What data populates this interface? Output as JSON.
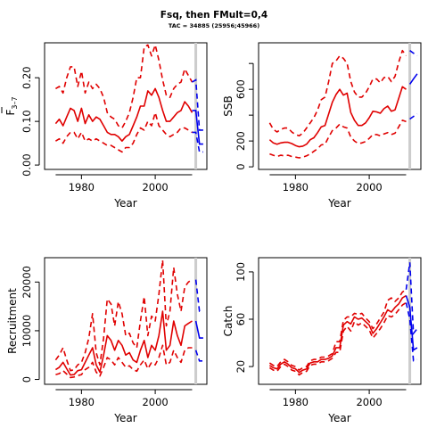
{
  "figure": {
    "title": "Fsq, then FMult=0,4",
    "subtitle": "TAC = 34885 (25956;45966)"
  },
  "colors": {
    "history": "#e00000",
    "projection": "#0000ee",
    "divider": "#cccccc"
  },
  "chart_data": [
    {
      "type": "line",
      "id": "fbar",
      "xlabel": "Year",
      "ylabel_main": "F",
      "ylabel_sub": "3–7",
      "xlim": [
        1970,
        2014
      ],
      "ylim": [
        -0.01,
        0.28
      ],
      "xticks": [
        1980,
        2000
      ],
      "yticks": [
        0.0,
        0.1,
        0.2
      ],
      "ytick_labels": [
        "0.00",
        "0.10",
        "0.20"
      ],
      "divider_x": 2011,
      "x": [
        1973,
        1974,
        1975,
        1976,
        1977,
        1978,
        1979,
        1980,
        1981,
        1982,
        1983,
        1984,
        1985,
        1986,
        1987,
        1988,
        1989,
        1990,
        1991,
        1992,
        1993,
        1994,
        1995,
        1996,
        1997,
        1998,
        1999,
        2000,
        2001,
        2002,
        2003,
        2004,
        2005,
        2006,
        2007,
        2008,
        2009,
        2010
      ],
      "series": [
        {
          "role": "median",
          "values": [
            0.095,
            0.105,
            0.09,
            0.11,
            0.13,
            0.125,
            0.1,
            0.13,
            0.095,
            0.115,
            0.1,
            0.11,
            0.105,
            0.09,
            0.075,
            0.07,
            0.07,
            0.065,
            0.055,
            0.065,
            0.07,
            0.09,
            0.11,
            0.135,
            0.135,
            0.17,
            0.16,
            0.175,
            0.155,
            0.125,
            0.1,
            0.1,
            0.11,
            0.12,
            0.125,
            0.145,
            0.135,
            0.12
          ]
        },
        {
          "role": "upper",
          "values": [
            0.175,
            0.18,
            0.165,
            0.2,
            0.225,
            0.225,
            0.18,
            0.215,
            0.165,
            0.19,
            0.175,
            0.185,
            0.175,
            0.155,
            0.12,
            0.11,
            0.105,
            0.09,
            0.085,
            0.1,
            0.12,
            0.155,
            0.2,
            0.2,
            0.27,
            0.275,
            0.25,
            0.275,
            0.24,
            0.195,
            0.16,
            0.155,
            0.175,
            0.185,
            0.19,
            0.22,
            0.205,
            0.19
          ]
        },
        {
          "role": "lower",
          "values": [
            0.055,
            0.06,
            0.05,
            0.065,
            0.075,
            0.075,
            0.06,
            0.075,
            0.055,
            0.06,
            0.055,
            0.06,
            0.055,
            0.05,
            0.045,
            0.045,
            0.04,
            0.035,
            0.03,
            0.04,
            0.04,
            0.05,
            0.07,
            0.085,
            0.08,
            0.1,
            0.09,
            0.12,
            0.09,
            0.08,
            0.07,
            0.065,
            0.07,
            0.075,
            0.085,
            0.085,
            0.08,
            0.075
          ]
        }
      ],
      "projection": {
        "x": [
          2010,
          2011,
          2012,
          2013
        ],
        "median": [
          0.125,
          0.125,
          0.048,
          0.048
        ],
        "upper": [
          0.19,
          0.195,
          0.08,
          0.08
        ],
        "lower": [
          0.075,
          0.075,
          0.03,
          0.03
        ]
      }
    },
    {
      "type": "line",
      "id": "ssb",
      "xlabel": "Year",
      "ylabel_main": "SSB",
      "xlim": [
        1970,
        2014
      ],
      "ylim": [
        -20,
        960
      ],
      "xticks": [
        1980,
        2000
      ],
      "yticks": [
        0,
        200,
        400,
        600,
        800
      ],
      "ytick_labels": [
        "0",
        "200",
        "",
        "600",
        ""
      ],
      "divider_x": 2011,
      "x": [
        1973,
        1974,
        1975,
        1976,
        1977,
        1978,
        1979,
        1980,
        1981,
        1982,
        1983,
        1984,
        1985,
        1986,
        1987,
        1988,
        1989,
        1990,
        1991,
        1992,
        1993,
        1994,
        1995,
        1996,
        1997,
        1998,
        1999,
        2000,
        2001,
        2002,
        2003,
        2004,
        2005,
        2006,
        2007,
        2008,
        2009,
        2010
      ],
      "series": [
        {
          "role": "median",
          "values": [
            210,
            185,
            175,
            185,
            190,
            190,
            180,
            165,
            155,
            160,
            175,
            210,
            225,
            265,
            310,
            320,
            410,
            500,
            560,
            600,
            555,
            570,
            420,
            360,
            320,
            320,
            340,
            380,
            430,
            425,
            415,
            450,
            470,
            430,
            440,
            530,
            620,
            600
          ]
        },
        {
          "role": "upper",
          "values": [
            340,
            290,
            270,
            290,
            300,
            300,
            270,
            250,
            240,
            260,
            300,
            340,
            380,
            440,
            520,
            540,
            660,
            800,
            820,
            860,
            840,
            800,
            660,
            580,
            540,
            540,
            570,
            620,
            680,
            680,
            650,
            690,
            700,
            660,
            700,
            810,
            900,
            860
          ]
        },
        {
          "role": "lower",
          "values": [
            100,
            90,
            80,
            90,
            85,
            90,
            80,
            75,
            70,
            75,
            85,
            100,
            120,
            140,
            170,
            175,
            230,
            280,
            300,
            330,
            310,
            300,
            230,
            200,
            180,
            185,
            195,
            220,
            250,
            250,
            240,
            255,
            265,
            250,
            260,
            310,
            360,
            350
          ]
        }
      ],
      "projection": {
        "x": [
          2011,
          2012,
          2013
        ],
        "median": [
          640,
          680,
          720
        ],
        "upper": [
          900,
          880,
          860
        ],
        "lower": [
          370,
          390,
          410
        ]
      }
    },
    {
      "type": "line",
      "id": "recruitment",
      "xlabel": "Year",
      "ylabel_main": "Recruitment",
      "xlim": [
        1970,
        2014
      ],
      "ylim": [
        -1000,
        25000
      ],
      "xticks": [
        1980,
        2000
      ],
      "yticks": [
        0,
        10000,
        20000
      ],
      "ytick_labels": [
        "0",
        "10000",
        "20000"
      ],
      "divider_x": 2011,
      "x": [
        1973,
        1974,
        1975,
        1976,
        1977,
        1978,
        1979,
        1980,
        1981,
        1982,
        1983,
        1984,
        1985,
        1986,
        1987,
        1988,
        1989,
        1990,
        1991,
        1992,
        1993,
        1994,
        1995,
        1996,
        1997,
        1998,
        1999,
        2000,
        2001,
        2002,
        2003,
        2004,
        2005,
        2006,
        2007,
        2008,
        2009,
        2010
      ],
      "series": [
        {
          "role": "median",
          "values": [
            2000,
            2500,
            3500,
            2200,
            900,
            1000,
            1800,
            2000,
            3500,
            5000,
            6500,
            3000,
            1500,
            5000,
            9000,
            8000,
            6000,
            8000,
            7000,
            5000,
            5500,
            4000,
            3500,
            6000,
            8000,
            4500,
            7000,
            6000,
            9000,
            14000,
            6000,
            7000,
            12000,
            9000,
            7000,
            11000,
            11500,
            12000
          ]
        },
        {
          "role": "upper",
          "values": [
            4000,
            5000,
            6500,
            4000,
            1800,
            2000,
            3000,
            3500,
            5500,
            8500,
            13500,
            5500,
            3000,
            8500,
            16500,
            15500,
            11000,
            16000,
            13500,
            9000,
            9500,
            7500,
            6500,
            12000,
            17000,
            9000,
            13000,
            12000,
            17500,
            24500,
            11000,
            14000,
            23000,
            17500,
            14000,
            19000,
            20000,
            20500
          ]
        },
        {
          "role": "lower",
          "values": [
            1000,
            1200,
            1800,
            1100,
            400,
            500,
            800,
            1000,
            2000,
            2500,
            3500,
            1500,
            700,
            2500,
            4500,
            4000,
            3000,
            4500,
            3500,
            2500,
            2800,
            2000,
            1700,
            3000,
            4000,
            2200,
            3500,
            3000,
            4500,
            7000,
            3000,
            3500,
            6000,
            4500,
            3500,
            6000,
            6500,
            6500
          ]
        }
      ],
      "projection": {
        "x": [
          2011,
          2012,
          2013
        ],
        "median": [
          12000,
          8500,
          8500
        ],
        "upper": [
          20500,
          14000,
          14000
        ],
        "lower": [
          6000,
          3800,
          3800
        ]
      }
    },
    {
      "type": "line",
      "id": "catch",
      "xlabel": "Year",
      "ylabel_main": "Catch",
      "xlim": [
        1970,
        2014
      ],
      "ylim": [
        5,
        112
      ],
      "xticks": [
        1980,
        2000
      ],
      "yticks": [
        20,
        60,
        100
      ],
      "ytick_labels": [
        "20",
        "60",
        "100"
      ],
      "divider_x": 2011,
      "x": [
        1973,
        1974,
        1975,
        1976,
        1977,
        1978,
        1979,
        1980,
        1981,
        1982,
        1983,
        1984,
        1985,
        1986,
        1987,
        1988,
        1989,
        1990,
        1991,
        1992,
        1993,
        1994,
        1995,
        1996,
        1997,
        1998,
        1999,
        2000,
        2001,
        2002,
        2003,
        2004,
        2005,
        2006,
        2007,
        2008,
        2009,
        2010
      ],
      "series": [
        {
          "role": "median",
          "values": [
            21,
            19,
            18,
            22,
            24,
            22,
            19,
            18,
            15,
            17,
            18,
            23,
            24,
            24,
            26,
            26,
            27,
            29,
            36,
            36,
            55,
            58,
            56,
            62,
            60,
            61,
            58,
            55,
            48,
            52,
            57,
            62,
            68,
            66,
            70,
            73,
            78,
            80
          ]
        },
        {
          "role": "upper",
          "values": [
            23,
            21,
            20,
            24,
            26,
            24,
            21,
            20,
            17,
            19,
            20,
            25,
            26,
            26,
            28,
            28,
            29,
            31,
            41,
            41,
            59,
            62,
            62,
            65,
            64,
            65,
            61,
            58,
            52,
            56,
            61,
            66,
            76,
            78,
            75,
            78,
            83,
            85
          ]
        },
        {
          "role": "lower",
          "values": [
            19,
            17,
            16,
            20,
            22,
            20,
            17,
            16,
            13,
            15,
            16,
            21,
            22,
            22,
            24,
            24,
            25,
            27,
            32,
            32,
            50,
            54,
            50,
            58,
            55,
            57,
            54,
            51,
            44,
            48,
            52,
            57,
            63,
            62,
            64,
            68,
            72,
            74
          ]
        }
      ],
      "projection": {
        "x": [
          2010,
          2011,
          2012,
          2013
        ],
        "median": [
          80,
          70,
          34,
          36
        ],
        "upper": [
          85,
          108,
          48,
          52
        ],
        "lower": [
          74,
          60,
          25,
          26
        ]
      }
    }
  ]
}
